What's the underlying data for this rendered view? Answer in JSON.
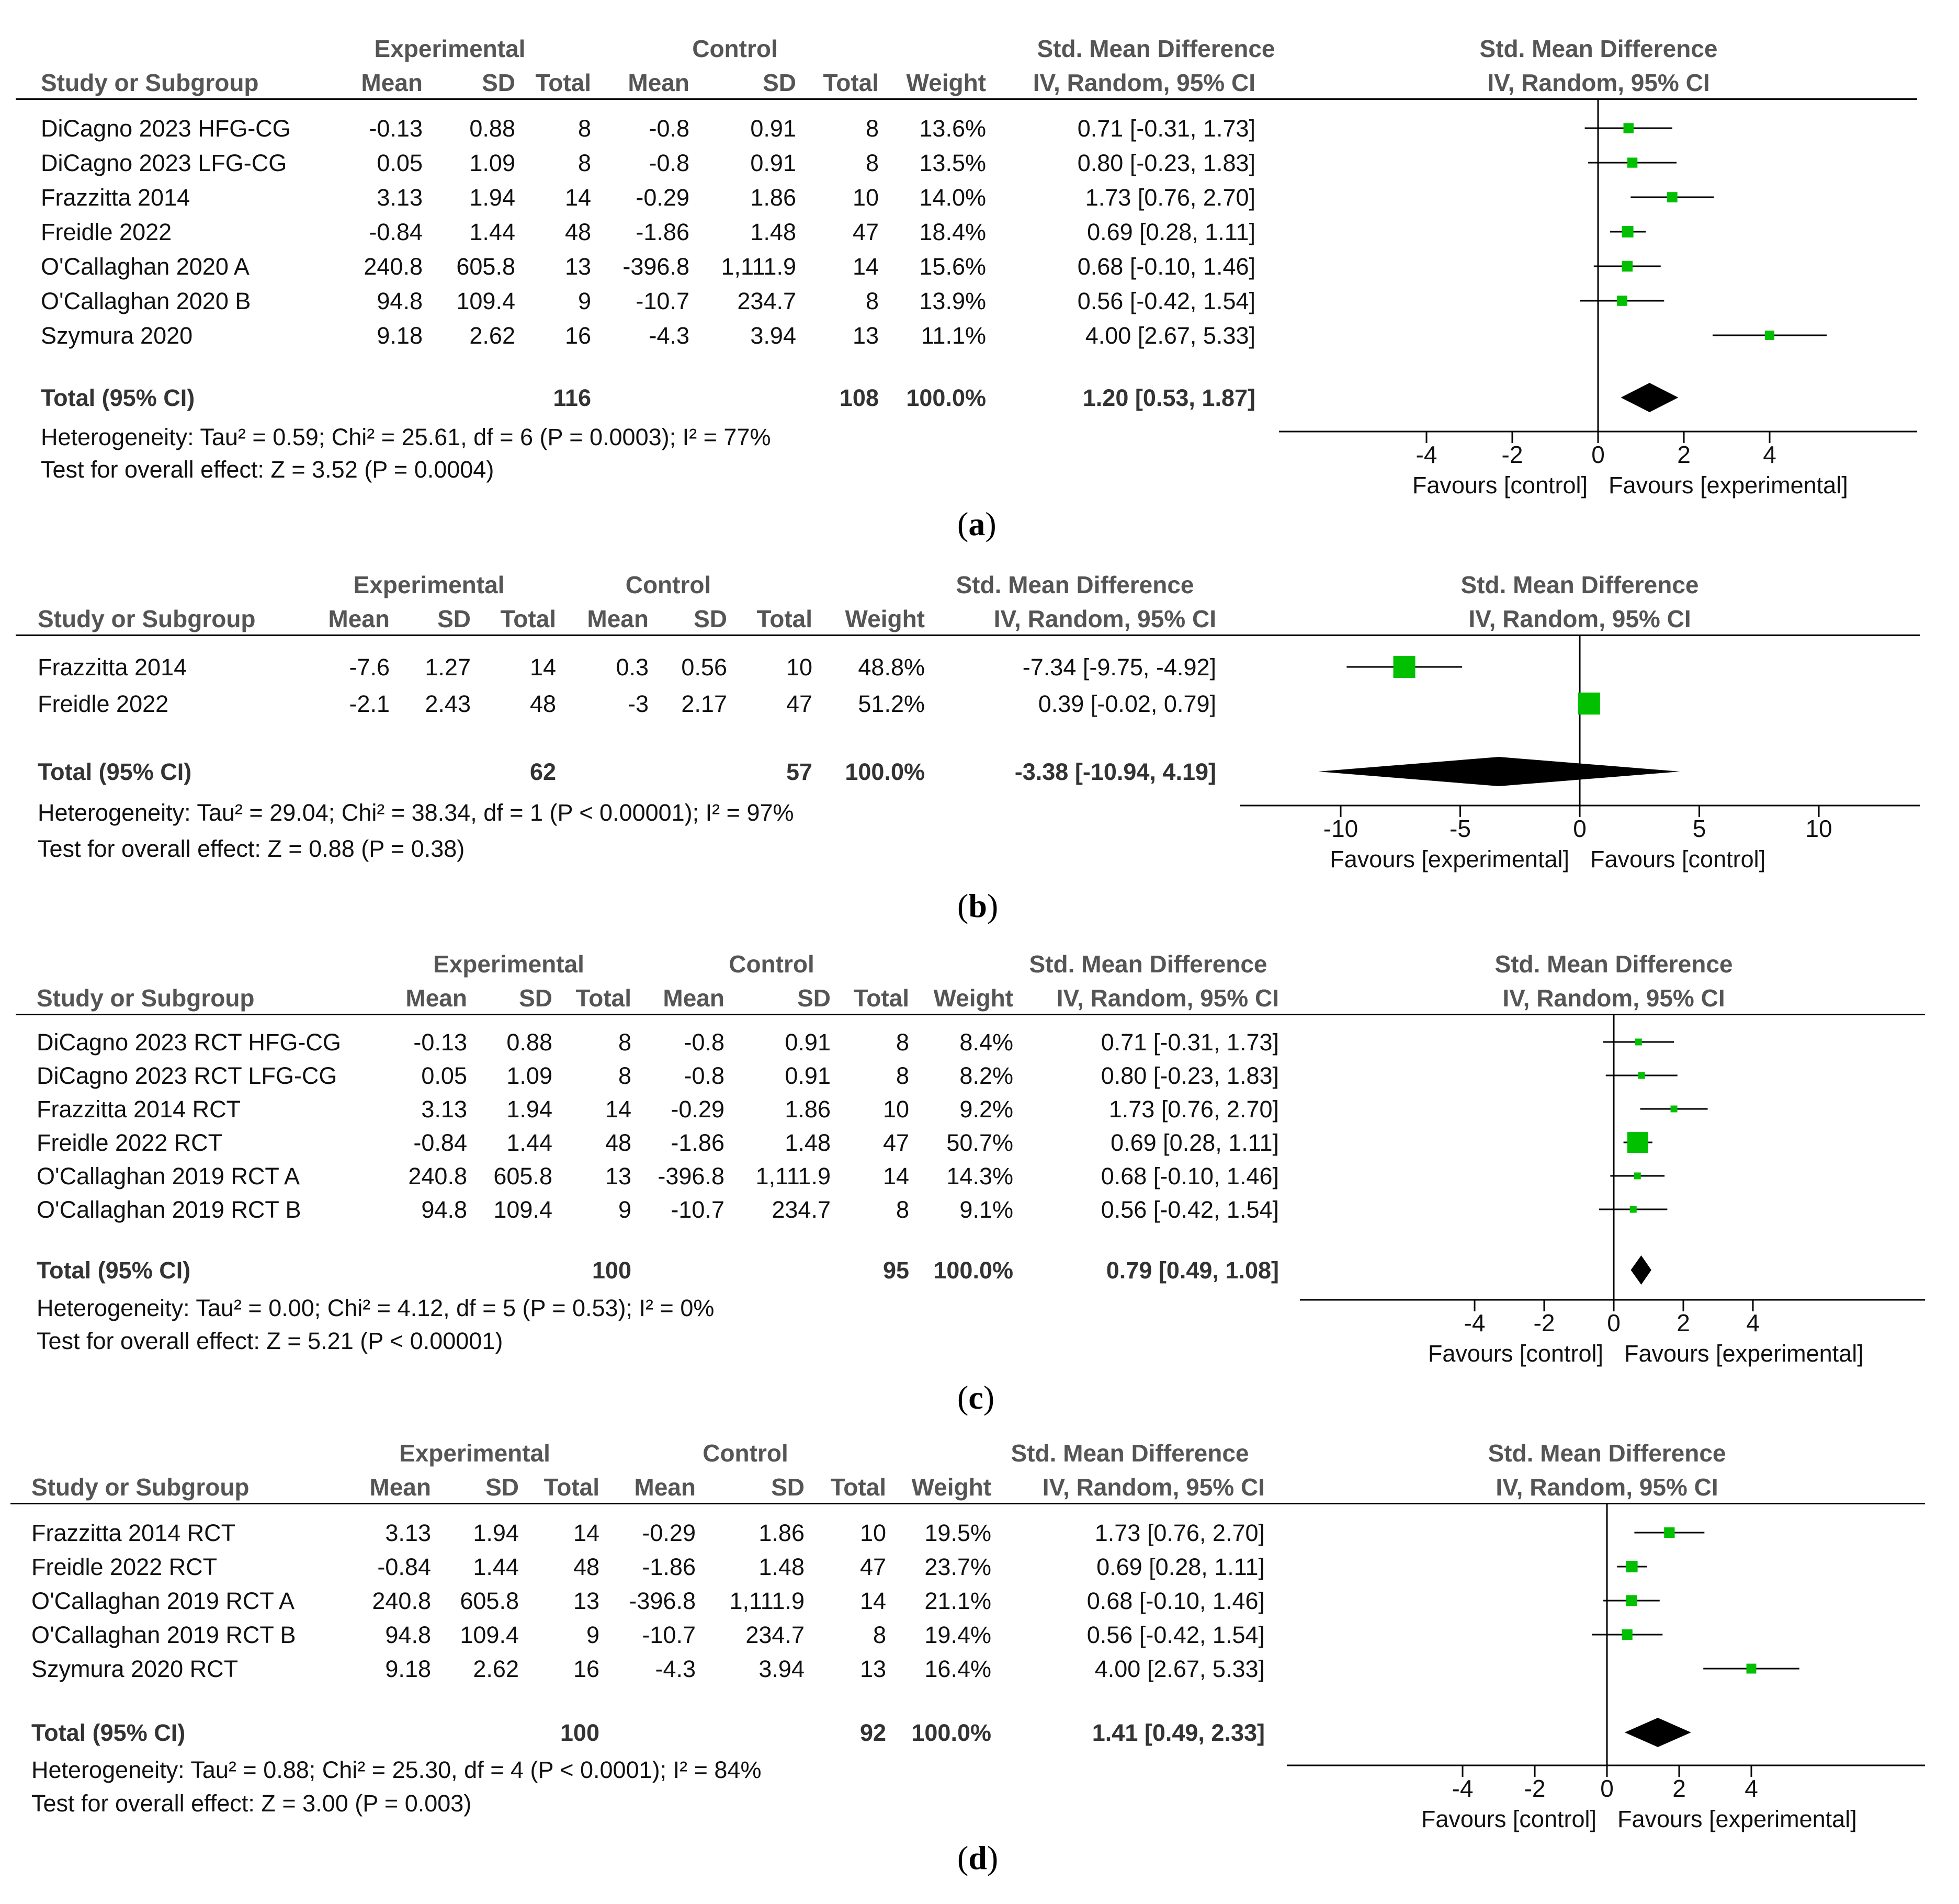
{
  "chart_data": [
    {
      "type": "forest",
      "id": "a",
      "caption": "a",
      "title": "Std. Mean Difference",
      "subtitle": "IV, Random, 95% CI",
      "columns": {
        "group_exp": "Experimental",
        "group_ctl": "Control",
        "smd_header": "Std. Mean Difference",
        "smd_sub": "IV, Random, 95% CI",
        "study": "Study or Subgroup",
        "mean": "Mean",
        "sd": "SD",
        "total": "Total",
        "weight": "Weight"
      },
      "studies": [
        {
          "name": "DiCagno 2023 HFG-CG",
          "e_mean": "-0.13",
          "e_sd": "0.88",
          "e_n": "8",
          "c_mean": "-0.8",
          "c_sd": "0.91",
          "c_n": "8",
          "weight": "13.6%",
          "ci_text": "0.71 [-0.31, 1.73]",
          "est": 0.71,
          "lo": -0.31,
          "hi": 1.73,
          "w": 13.6
        },
        {
          "name": "DiCagno 2023 LFG-CG",
          "e_mean": "0.05",
          "e_sd": "1.09",
          "e_n": "8",
          "c_mean": "-0.8",
          "c_sd": "0.91",
          "c_n": "8",
          "weight": "13.5%",
          "ci_text": "0.80 [-0.23, 1.83]",
          "est": 0.8,
          "lo": -0.23,
          "hi": 1.83,
          "w": 13.5
        },
        {
          "name": "Frazzitta 2014",
          "e_mean": "3.13",
          "e_sd": "1.94",
          "e_n": "14",
          "c_mean": "-0.29",
          "c_sd": "1.86",
          "c_n": "10",
          "weight": "14.0%",
          "ci_text": "1.73 [0.76, 2.70]",
          "est": 1.73,
          "lo": 0.76,
          "hi": 2.7,
          "w": 14.0
        },
        {
          "name": "Freidle 2022",
          "e_mean": "-0.84",
          "e_sd": "1.44",
          "e_n": "48",
          "c_mean": "-1.86",
          "c_sd": "1.48",
          "c_n": "47",
          "weight": "18.4%",
          "ci_text": "0.69 [0.28, 1.11]",
          "est": 0.69,
          "lo": 0.28,
          "hi": 1.11,
          "w": 18.4
        },
        {
          "name": "O'Callaghan 2020 A",
          "e_mean": "240.8",
          "e_sd": "605.8",
          "e_n": "13",
          "c_mean": "-396.8",
          "c_sd": "1,111.9",
          "c_n": "14",
          "weight": "15.6%",
          "ci_text": "0.68 [-0.10, 1.46]",
          "est": 0.68,
          "lo": -0.1,
          "hi": 1.46,
          "w": 15.6
        },
        {
          "name": "O'Callaghan 2020 B",
          "e_mean": "94.8",
          "e_sd": "109.4",
          "e_n": "9",
          "c_mean": "-10.7",
          "c_sd": "234.7",
          "c_n": "8",
          "weight": "13.9%",
          "ci_text": "0.56 [-0.42, 1.54]",
          "est": 0.56,
          "lo": -0.42,
          "hi": 1.54,
          "w": 13.9
        },
        {
          "name": "Szymura 2020",
          "e_mean": "9.18",
          "e_sd": "2.62",
          "e_n": "16",
          "c_mean": "-4.3",
          "c_sd": "3.94",
          "c_n": "13",
          "weight": "11.1%",
          "ci_text": "4.00 [2.67, 5.33]",
          "est": 4.0,
          "lo": 2.67,
          "hi": 5.33,
          "w": 11.1
        }
      ],
      "total": {
        "label": "Total (95% CI)",
        "e_n": "116",
        "c_n": "108",
        "weight": "100.0%",
        "ci_text": "1.20 [0.53, 1.87]",
        "est": 1.2,
        "lo": 0.53,
        "hi": 1.87
      },
      "heterogeneity": "Heterogeneity: Tau² = 0.59; Chi² = 25.61, df = 6 (P = 0.0003); I² = 77%",
      "overall": "Test for overall effect: Z = 3.52 (P = 0.0004)",
      "xlim": [
        -7.5,
        7.5
      ],
      "ticks": [
        -4,
        -2,
        0,
        2,
        4
      ],
      "tick_labels": [
        "-4",
        "-2",
        "0",
        "2",
        "4"
      ],
      "favours_left": "Favours [control]",
      "favours_right": "Favours [experimental]"
    },
    {
      "type": "forest",
      "id": "b",
      "caption": "b",
      "title": "Std. Mean Difference",
      "subtitle": "IV, Random, 95% CI",
      "columns": {
        "group_exp": "Experimental",
        "group_ctl": "Control",
        "smd_header": "Std. Mean Difference",
        "smd_sub": "IV, Random, 95% CI",
        "study": "Study or Subgroup",
        "mean": "Mean",
        "sd": "SD",
        "total": "Total",
        "weight": "Weight"
      },
      "studies": [
        {
          "name": "Frazzitta 2014",
          "e_mean": "-7.6",
          "e_sd": "1.27",
          "e_n": "14",
          "c_mean": "0.3",
          "c_sd": "0.56",
          "c_n": "10",
          "weight": "48.8%",
          "ci_text": "-7.34 [-9.75, -4.92]",
          "est": -7.34,
          "lo": -9.75,
          "hi": -4.92,
          "w": 48.8
        },
        {
          "name": "Freidle 2022",
          "e_mean": "-2.1",
          "e_sd": "2.43",
          "e_n": "48",
          "c_mean": "-3",
          "c_sd": "2.17",
          "c_n": "47",
          "weight": "51.2%",
          "ci_text": "0.39 [-0.02, 0.79]",
          "est": 0.39,
          "lo": -0.02,
          "hi": 0.79,
          "w": 51.2
        }
      ],
      "total": {
        "label": "Total (95% CI)",
        "e_n": "62",
        "c_n": "57",
        "weight": "100.0%",
        "ci_text": "-3.38 [-10.94, 4.19]",
        "est": -3.38,
        "lo": -10.94,
        "hi": 4.19
      },
      "heterogeneity": "Heterogeneity: Tau² = 29.04; Chi² = 38.34, df = 1 (P < 0.00001); I² = 97%",
      "overall": "Test for overall effect: Z = 0.88 (P = 0.38)",
      "xlim": [
        -14.3,
        14.3
      ],
      "ticks": [
        -10,
        -5,
        0,
        5,
        10
      ],
      "tick_labels": [
        "-10",
        "-5",
        "0",
        "5",
        "10"
      ],
      "favours_left": "Favours [experimental]",
      "favours_right": "Favours [control]"
    },
    {
      "type": "forest",
      "id": "c",
      "caption": "c",
      "title": "Std. Mean Difference",
      "subtitle": "IV, Random, 95% CI",
      "columns": {
        "group_exp": "Experimental",
        "group_ctl": "Control",
        "smd_header": "Std. Mean Difference",
        "smd_sub": "IV, Random, 95% CI",
        "study": "Study or Subgroup",
        "mean": "Mean",
        "sd": "SD",
        "total": "Total",
        "weight": "Weight"
      },
      "studies": [
        {
          "name": "DiCagno 2023 RCT HFG-CG",
          "e_mean": "-0.13",
          "e_sd": "0.88",
          "e_n": "8",
          "c_mean": "-0.8",
          "c_sd": "0.91",
          "c_n": "8",
          "weight": "8.4%",
          "ci_text": "0.71 [-0.31, 1.73]",
          "est": 0.71,
          "lo": -0.31,
          "hi": 1.73,
          "w": 8.4
        },
        {
          "name": "DiCagno 2023 RCT LFG-CG",
          "e_mean": "0.05",
          "e_sd": "1.09",
          "e_n": "8",
          "c_mean": "-0.8",
          "c_sd": "0.91",
          "c_n": "8",
          "weight": "8.2%",
          "ci_text": "0.80 [-0.23, 1.83]",
          "est": 0.8,
          "lo": -0.23,
          "hi": 1.83,
          "w": 8.2
        },
        {
          "name": "Frazzitta 2014 RCT",
          "e_mean": "3.13",
          "e_sd": "1.94",
          "e_n": "14",
          "c_mean": "-0.29",
          "c_sd": "1.86",
          "c_n": "10",
          "weight": "9.2%",
          "ci_text": "1.73 [0.76, 2.70]",
          "est": 1.73,
          "lo": 0.76,
          "hi": 2.7,
          "w": 9.2
        },
        {
          "name": "Freidle 2022 RCT",
          "e_mean": "-0.84",
          "e_sd": "1.44",
          "e_n": "48",
          "c_mean": "-1.86",
          "c_sd": "1.48",
          "c_n": "47",
          "weight": "50.7%",
          "ci_text": "0.69 [0.28, 1.11]",
          "est": 0.69,
          "lo": 0.28,
          "hi": 1.11,
          "w": 50.7
        },
        {
          "name": "O'Callaghan 2019 RCT A",
          "e_mean": "240.8",
          "e_sd": "605.8",
          "e_n": "13",
          "c_mean": "-396.8",
          "c_sd": "1,111.9",
          "c_n": "14",
          "weight": "14.3%",
          "ci_text": "0.68 [-0.10, 1.46]",
          "est": 0.68,
          "lo": -0.1,
          "hi": 1.46,
          "w": 14.3
        },
        {
          "name": "O'Callaghan 2019 RCT B",
          "e_mean": "94.8",
          "e_sd": "109.4",
          "e_n": "9",
          "c_mean": "-10.7",
          "c_sd": "234.7",
          "c_n": "8",
          "weight": "9.1%",
          "ci_text": "0.56 [-0.42, 1.54]",
          "est": 0.56,
          "lo": -0.42,
          "hi": 1.54,
          "w": 9.1
        }
      ],
      "total": {
        "label": "Total (95% CI)",
        "e_n": "100",
        "c_n": "95",
        "weight": "100.0%",
        "ci_text": "0.79 [0.49, 1.08]",
        "est": 0.79,
        "lo": 0.49,
        "hi": 1.08
      },
      "heterogeneity": "Heterogeneity: Tau² = 0.00; Chi² = 4.12, df = 5 (P = 0.53); I² = 0%",
      "overall": "Test for overall effect: Z = 5.21 (P < 0.00001)",
      "xlim": [
        -9,
        9
      ],
      "ticks": [
        -4,
        -2,
        0,
        2,
        4
      ],
      "tick_labels": [
        "-4",
        "-2",
        "0",
        "2",
        "4"
      ],
      "favours_left": "Favours [control]",
      "favours_right": "Favours [experimental]"
    },
    {
      "type": "forest",
      "id": "d",
      "caption": "d",
      "title": "Std. Mean Difference",
      "subtitle": "IV, Random, 95% CI",
      "columns": {
        "group_exp": "Experimental",
        "group_ctl": "Control",
        "smd_header": "Std. Mean Difference",
        "smd_sub": "IV, Random, 95% CI",
        "study": "Study or Subgroup",
        "mean": "Mean",
        "sd": "SD",
        "total": "Total",
        "weight": "Weight"
      },
      "studies": [
        {
          "name": "Frazzitta 2014 RCT",
          "e_mean": "3.13",
          "e_sd": "1.94",
          "e_n": "14",
          "c_mean": "-0.29",
          "c_sd": "1.86",
          "c_n": "10",
          "weight": "19.5%",
          "ci_text": "1.73 [0.76, 2.70]",
          "est": 1.73,
          "lo": 0.76,
          "hi": 2.7,
          "w": 19.5
        },
        {
          "name": "Freidle 2022 RCT",
          "e_mean": "-0.84",
          "e_sd": "1.44",
          "e_n": "48",
          "c_mean": "-1.86",
          "c_sd": "1.48",
          "c_n": "47",
          "weight": "23.7%",
          "ci_text": "0.69 [0.28, 1.11]",
          "est": 0.69,
          "lo": 0.28,
          "hi": 1.11,
          "w": 23.7
        },
        {
          "name": "O'Callaghan 2019 RCT A",
          "e_mean": "240.8",
          "e_sd": "605.8",
          "e_n": "13",
          "c_mean": "-396.8",
          "c_sd": "1,111.9",
          "c_n": "14",
          "weight": "21.1%",
          "ci_text": "0.68 [-0.10, 1.46]",
          "est": 0.68,
          "lo": -0.1,
          "hi": 1.46,
          "w": 21.1
        },
        {
          "name": "O'Callaghan 2019 RCT B",
          "e_mean": "94.8",
          "e_sd": "109.4",
          "e_n": "9",
          "c_mean": "-10.7",
          "c_sd": "234.7",
          "c_n": "8",
          "weight": "19.4%",
          "ci_text": "0.56 [-0.42, 1.54]",
          "est": 0.56,
          "lo": -0.42,
          "hi": 1.54,
          "w": 19.4
        },
        {
          "name": "Szymura 2020 RCT",
          "e_mean": "9.18",
          "e_sd": "2.62",
          "e_n": "16",
          "c_mean": "-4.3",
          "c_sd": "3.94",
          "c_n": "13",
          "weight": "16.4%",
          "ci_text": "4.00 [2.67, 5.33]",
          "est": 4.0,
          "lo": 2.67,
          "hi": 5.33,
          "w": 16.4
        }
      ],
      "total": {
        "label": "Total (95% CI)",
        "e_n": "100",
        "c_n": "92",
        "weight": "100.0%",
        "ci_text": "1.41 [0.49, 2.33]",
        "est": 1.41,
        "lo": 0.49,
        "hi": 2.33
      },
      "heterogeneity": "Heterogeneity: Tau² = 0.88; Chi² = 25.30, df = 4 (P < 0.0001); I² = 84%",
      "overall": "Test for overall effect: Z = 3.00 (P = 0.003)",
      "xlim": [
        -9,
        9
      ],
      "ticks": [
        -4,
        -2,
        0,
        2,
        4
      ],
      "tick_labels": [
        "-4",
        "-2",
        "0",
        "2",
        "4"
      ],
      "favours_left": "Favours [control]",
      "favours_right": "Favours [experimental]"
    }
  ],
  "colors": {
    "square": "#00c000",
    "diamond": "#000000",
    "line": "#000000"
  }
}
